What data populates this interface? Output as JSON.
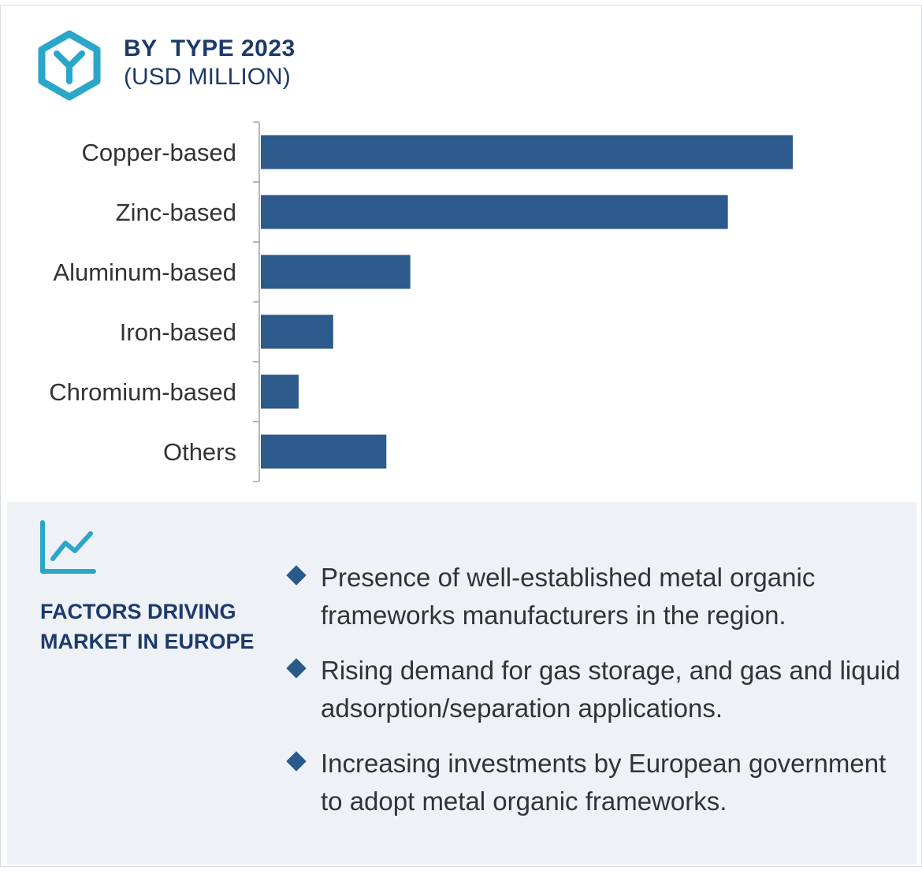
{
  "header": {
    "title": "BY  TYPE 2023",
    "subtitle": "(USD MILLION)",
    "icon": "hexagon-y-logo-icon",
    "icon_color": "#2aa6c9"
  },
  "chart_data": {
    "type": "bar",
    "orientation": "horizontal",
    "categories": [
      "Copper-based",
      "Zinc-based",
      "Aluminum-based",
      "Iron-based",
      "Chromium-based",
      "Others"
    ],
    "values": [
      100,
      87.8,
      28.1,
      13.6,
      7.1,
      23.6
    ],
    "bar_color": "#2c5a8a",
    "xlim": [
      0,
      100
    ],
    "grid": false,
    "value_axis_shown": false
  },
  "panel": {
    "icon": "trend-line-chart-icon",
    "icon_color": "#2aa6c9",
    "heading": "FACTORS DRIVING MARKET IN EUROPE",
    "background_color": "#eef1f6",
    "factors": [
      "Presence of well-established metal organic frameworks manufacturers in the region.",
      "Rising demand for gas storage, and gas and liquid adsorption/separation applications.",
      "Increasing investments by European government to adopt metal organic frameworks."
    ]
  }
}
